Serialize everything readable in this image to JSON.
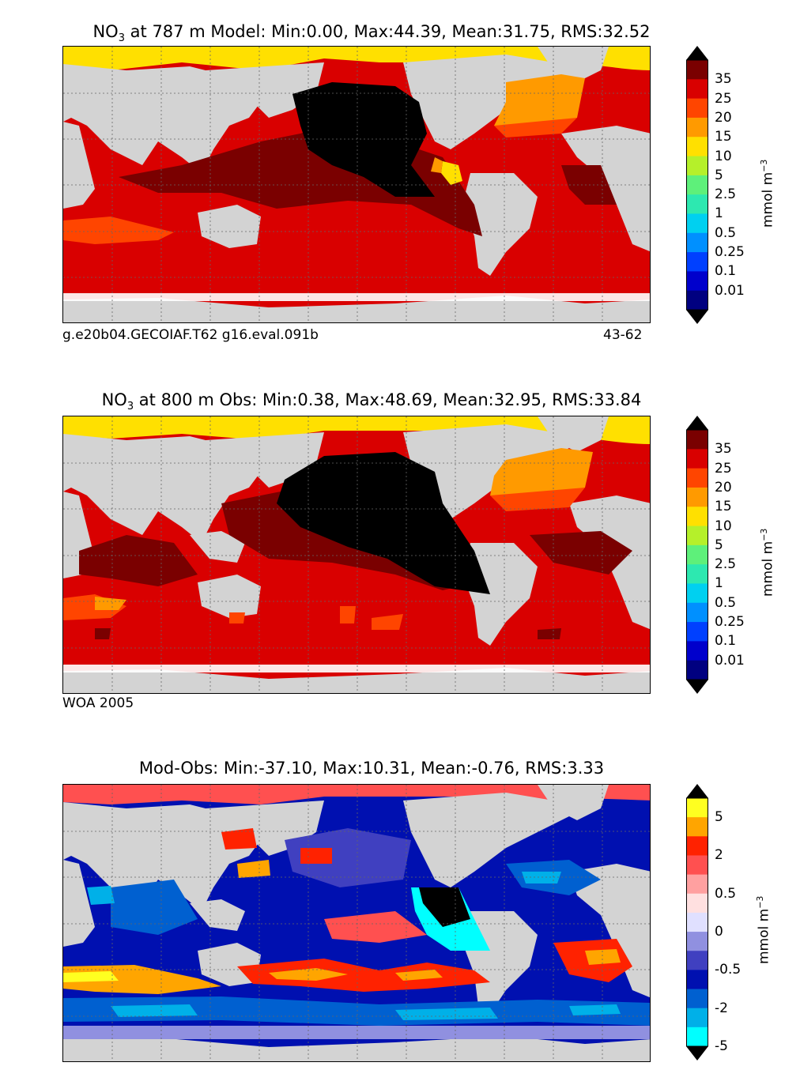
{
  "panels": [
    {
      "title_prefix": "NO",
      "title_sub": "3",
      "title_rest": " at 787 m Model: Min:0.00, Max:44.39, Mean:31.75, RMS:32.52",
      "footer_left": "g.e20b04.GECOIAF.T62 g16.eval.091b",
      "footer_right": "43-62",
      "units": "mmol m",
      "units_sup": "−3",
      "colorbar": {
        "labels": [
          "35",
          "25",
          "20",
          "15",
          "10",
          "5",
          "2.5",
          "1",
          "0.5",
          "0.25",
          "0.1",
          "0.01"
        ],
        "colors": [
          "#7a0000",
          "#d90000",
          "#ff4500",
          "#ff9a00",
          "#ffe000",
          "#b5f02a",
          "#5ef07a",
          "#2de8b0",
          "#00d0f0",
          "#0090ff",
          "#0040ff",
          "#0000cc",
          "#000080"
        ],
        "max_color": "#000000",
        "min_color": "#000000"
      }
    },
    {
      "title_prefix": "NO",
      "title_sub": "3",
      "title_rest": " at 800 m Obs: Min:0.38, Max:48.69, Mean:32.95, RMS:33.84",
      "footer_left": "WOA 2005",
      "footer_right": "",
      "units": "mmol m",
      "units_sup": "−3",
      "colorbar": {
        "labels": [
          "35",
          "25",
          "20",
          "15",
          "10",
          "5",
          "2.5",
          "1",
          "0.5",
          "0.25",
          "0.1",
          "0.01"
        ],
        "colors": [
          "#7a0000",
          "#d90000",
          "#ff4500",
          "#ff9a00",
          "#ffe000",
          "#b5f02a",
          "#5ef07a",
          "#2de8b0",
          "#00d0f0",
          "#0090ff",
          "#0040ff",
          "#0000cc",
          "#000080"
        ],
        "max_color": "#000000",
        "min_color": "#000000"
      }
    },
    {
      "title_prefix": "Mod-Obs: Min:-37.10, Max:10.31, Mean:-0.76, RMS:3.33",
      "title_sub": "",
      "title_rest": "",
      "footer_left": "",
      "footer_right": "",
      "units": "mmol m",
      "units_sup": "−3",
      "colorbar": {
        "labels": [
          "5",
          "2",
          "0.5",
          "0",
          "-0.5",
          "-2",
          "-5"
        ],
        "colors": [
          "#ffff20",
          "#ffa500",
          "#ff2200",
          "#ff5050",
          "#ffa0a0",
          "#ffe0e0",
          "#e0e0ff",
          "#9090e0",
          "#4040c0",
          "#0010b0",
          "#0060d0",
          "#00b0e8",
          "#00ffff"
        ],
        "max_color": "#000000",
        "min_color": "#000000"
      }
    }
  ],
  "chart_data": [
    {
      "type": "heatmap",
      "title": "NO3 at 787 m Model: Min:0.00, Max:44.39, Mean:31.75, RMS:32.52",
      "variable": "NO3",
      "depth_m": 787,
      "stats": {
        "min": 0.0,
        "max": 44.39,
        "mean": 31.75,
        "rms": 32.52
      },
      "levels": [
        0.01,
        0.1,
        0.25,
        0.5,
        1,
        2.5,
        5,
        10,
        15,
        20,
        25,
        35
      ],
      "units": "mmol m^-3",
      "annotations": [
        "g.e20b04.GECOIAF.T62 g16.eval.091b",
        "43-62"
      ]
    },
    {
      "type": "heatmap",
      "title": "NO3 at 800 m Obs: Min:0.38, Max:48.69, Mean:32.95, RMS:33.84",
      "variable": "NO3",
      "depth_m": 800,
      "stats": {
        "min": 0.38,
        "max": 48.69,
        "mean": 32.95,
        "rms": 33.84
      },
      "levels": [
        0.01,
        0.1,
        0.25,
        0.5,
        1,
        2.5,
        5,
        10,
        15,
        20,
        25,
        35
      ],
      "units": "mmol m^-3",
      "annotations": [
        "WOA 2005"
      ]
    },
    {
      "type": "heatmap",
      "title": "Mod-Obs: Min:-37.10, Max:10.31, Mean:-0.76, RMS:3.33",
      "stats": {
        "min": -37.1,
        "max": 10.31,
        "mean": -0.76,
        "rms": 3.33
      },
      "levels": [
        -5,
        -2,
        -0.5,
        0,
        0.5,
        2,
        5
      ],
      "units": "mmol m^-3"
    }
  ]
}
